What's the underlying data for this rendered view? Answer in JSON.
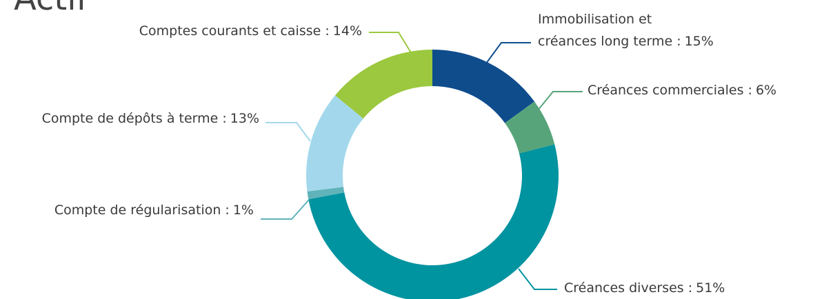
{
  "chart_data": {
    "type": "donut",
    "title": "Actif",
    "categories": [
      "Immobilisation et\ncréances long terme :",
      "Créances commerciales :",
      "Créances diverses :",
      "Compte de régularisation :",
      "Compte de dépôts à terme :",
      "Comptes courants et caisse :"
    ],
    "values": [
      15,
      6,
      51,
      1,
      13,
      14
    ],
    "value_labels": [
      "15%",
      "6%",
      "51%",
      "1%",
      "13%",
      "14%"
    ],
    "colors": [
      "#0f4c8c",
      "#57a47b",
      "#0093a0",
      "#5fb3b9",
      "#a3d8ec",
      "#9bc83e"
    ]
  }
}
